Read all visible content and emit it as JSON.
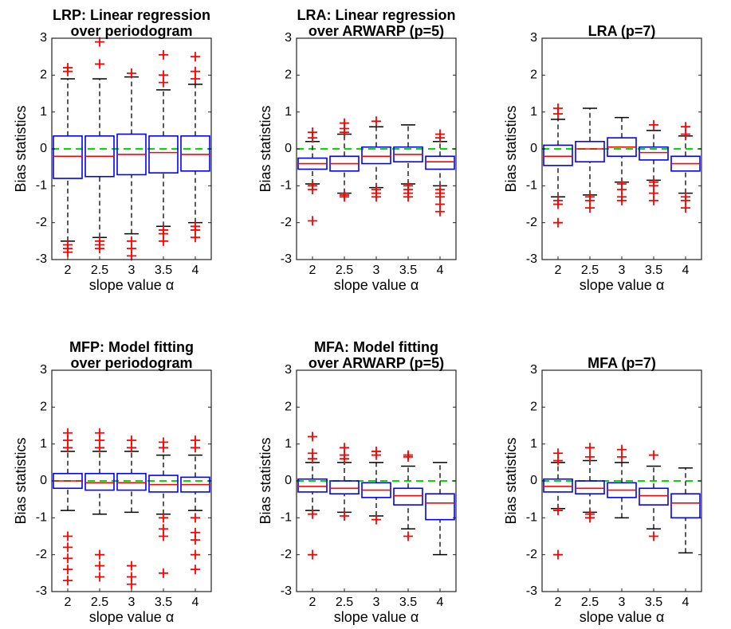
{
  "chart_data": [
    {
      "type": "box",
      "title": [
        "LRP: Linear regression",
        "over periodogram"
      ],
      "xlabel": "slope value α",
      "ylabel": "Bias statistics",
      "categories": [
        "2",
        "2.5",
        "3",
        "3.5",
        "4"
      ],
      "ylim": [
        -3,
        3
      ],
      "yticks": [
        -3,
        -2,
        -1,
        0,
        1,
        2,
        3
      ],
      "refline": 0,
      "refline_color": "#00dd00",
      "box_color": "#0000ff",
      "median_color": "#ff0000",
      "whisker_color": "#000000",
      "flier_color": "#ff0000",
      "boxes": [
        {
          "whislo": -2.5,
          "q1": -0.8,
          "med": -0.2,
          "q3": 0.35,
          "whishi": 1.9,
          "fliers": [
            2.2,
            2.1,
            -2.6,
            -2.7,
            -2.8
          ]
        },
        {
          "whislo": -2.4,
          "q1": -0.75,
          "med": -0.2,
          "q3": 0.35,
          "whishi": 1.9,
          "fliers": [
            2.9,
            2.3,
            -2.5,
            -2.6,
            -2.7
          ]
        },
        {
          "whislo": -2.3,
          "q1": -0.7,
          "med": -0.15,
          "q3": 0.4,
          "whishi": 1.95,
          "fliers": [
            2.05,
            -2.5,
            -2.7,
            -2.9
          ]
        },
        {
          "whislo": -2.1,
          "q1": -0.65,
          "med": -0.1,
          "q3": 0.35,
          "whishi": 1.6,
          "fliers": [
            2.55,
            2.0,
            1.8,
            -2.2,
            -2.3,
            -2.5
          ]
        },
        {
          "whislo": -2.0,
          "q1": -0.6,
          "med": -0.15,
          "q3": 0.35,
          "whishi": 1.75,
          "fliers": [
            2.5,
            2.1,
            1.9,
            -2.1,
            -2.2,
            -2.4
          ]
        }
      ]
    },
    {
      "type": "box",
      "title": [
        "LRA: Linear regression",
        "over ARWARP (p=5)"
      ],
      "xlabel": "slope value α",
      "ylabel": "Bias statistics",
      "categories": [
        "2",
        "2.5",
        "3",
        "3.5",
        "4"
      ],
      "ylim": [
        -3,
        3
      ],
      "yticks": [
        -3,
        -2,
        -1,
        0,
        1,
        2,
        3
      ],
      "refline": 0,
      "refline_color": "#00dd00",
      "box_color": "#0000ff",
      "median_color": "#ff0000",
      "whisker_color": "#000000",
      "flier_color": "#ff0000",
      "boxes": [
        {
          "whislo": -0.95,
          "q1": -0.55,
          "med": -0.4,
          "q3": -0.25,
          "whishi": 0.2,
          "fliers": [
            0.45,
            0.3,
            -1.0,
            -1.1,
            -1.95
          ]
        },
        {
          "whislo": -1.2,
          "q1": -0.6,
          "med": -0.4,
          "q3": -0.2,
          "whishi": 0.4,
          "fliers": [
            0.7,
            0.55,
            0.45,
            -1.25,
            -1.3
          ]
        },
        {
          "whislo": -1.05,
          "q1": -0.4,
          "med": -0.2,
          "q3": 0.05,
          "whishi": 0.6,
          "fliers": [
            0.75,
            -1.1,
            -1.2,
            -1.3
          ]
        },
        {
          "whislo": -0.95,
          "q1": -0.35,
          "med": -0.15,
          "q3": 0.05,
          "whishi": 0.65,
          "fliers": [
            -1.0,
            -1.1,
            -1.2,
            -1.3
          ]
        },
        {
          "whislo": -1.0,
          "q1": -0.55,
          "med": -0.35,
          "q3": -0.2,
          "whishi": 0.2,
          "fliers": [
            0.4,
            0.3,
            -1.1,
            -1.2,
            -1.3,
            -1.5,
            -1.7
          ]
        }
      ]
    },
    {
      "type": "box",
      "title": [
        "LRA (p=7)"
      ],
      "xlabel": "slope value α",
      "ylabel": "Bias statistics",
      "categories": [
        "2",
        "2.5",
        "3",
        "3.5",
        "4"
      ],
      "ylim": [
        -3,
        3
      ],
      "yticks": [
        -3,
        -2,
        -1,
        0,
        1,
        2,
        3
      ],
      "refline": 0,
      "refline_color": "#00dd00",
      "box_color": "#0000ff",
      "median_color": "#ff0000",
      "whisker_color": "#000000",
      "flier_color": "#ff0000",
      "boxes": [
        {
          "whislo": -1.3,
          "q1": -0.45,
          "med": -0.2,
          "q3": 0.1,
          "whishi": 0.8,
          "fliers": [
            1.1,
            0.95,
            -1.4,
            -1.5,
            -2.0
          ]
        },
        {
          "whislo": -1.25,
          "q1": -0.35,
          "med": 0,
          "q3": 0.2,
          "whishi": 1.1,
          "fliers": [
            -1.3,
            -1.4,
            -1.6
          ]
        },
        {
          "whislo": -0.9,
          "q1": -0.2,
          "med": 0.05,
          "q3": 0.3,
          "whishi": 0.85,
          "fliers": [
            -0.95,
            -1.1,
            -1.3,
            -1.4
          ]
        },
        {
          "whislo": -0.85,
          "q1": -0.3,
          "med": -0.1,
          "q3": 0.05,
          "whishi": 0.5,
          "fliers": [
            0.65,
            -0.9,
            -1.0,
            -1.2,
            -1.4
          ]
        },
        {
          "whislo": -1.2,
          "q1": -0.6,
          "med": -0.4,
          "q3": -0.2,
          "whishi": 0.35,
          "fliers": [
            0.6,
            0.4,
            -1.3,
            -1.4,
            -1.6
          ]
        }
      ]
    },
    {
      "type": "box",
      "title": [
        "MFP: Model fitting",
        "over periodogram"
      ],
      "xlabel": "slope value α",
      "ylabel": "Bias statistics",
      "categories": [
        "2",
        "2.5",
        "3",
        "3.5",
        "4"
      ],
      "ylim": [
        -3,
        3
      ],
      "yticks": [
        -3,
        -2,
        -1,
        0,
        1,
        2,
        3
      ],
      "refline": 0,
      "refline_color": "#00dd00",
      "box_color": "#0000ff",
      "median_color": "#ff0000",
      "whisker_color": "#000000",
      "flier_color": "#ff0000",
      "boxes": [
        {
          "whislo": -0.8,
          "q1": -0.2,
          "med": 0,
          "q3": 0.2,
          "whishi": 0.8,
          "fliers": [
            1.3,
            1.1,
            0.9,
            -1.5,
            -1.8,
            -2.1,
            -2.4,
            -2.7
          ]
        },
        {
          "whislo": -0.9,
          "q1": -0.25,
          "med": -0.05,
          "q3": 0.2,
          "whishi": 0.8,
          "fliers": [
            1.3,
            1.1,
            0.9,
            -2.0,
            -2.3,
            -2.6
          ]
        },
        {
          "whislo": -0.85,
          "q1": -0.25,
          "med": -0.05,
          "q3": 0.2,
          "whishi": 0.8,
          "fliers": [
            1.1,
            0.9,
            -2.3,
            -2.6,
            -2.8
          ]
        },
        {
          "whislo": -0.9,
          "q1": -0.3,
          "med": -0.1,
          "q3": 0.15,
          "whishi": 0.7,
          "fliers": [
            1.05,
            0.9,
            -1.0,
            -1.3,
            -1.5,
            -2.5
          ]
        },
        {
          "whislo": -0.8,
          "q1": -0.3,
          "med": -0.1,
          "q3": 0.1,
          "whishi": 0.7,
          "fliers": [
            1.1,
            0.9,
            -1.0,
            -1.4,
            -1.6,
            -2.0,
            -2.4
          ]
        }
      ]
    },
    {
      "type": "box",
      "title": [
        "MFA: Model fitting",
        "over ARWARP (p=5)"
      ],
      "xlabel": "slope value α",
      "ylabel": "Bias statistics",
      "categories": [
        "2",
        "2.5",
        "3",
        "3.5",
        "4"
      ],
      "ylim": [
        -3,
        3
      ],
      "yticks": [
        -3,
        -2,
        -1,
        0,
        1,
        2,
        3
      ],
      "refline": 0,
      "refline_color": "#00dd00",
      "box_color": "#0000ff",
      "median_color": "#ff0000",
      "whisker_color": "#000000",
      "flier_color": "#ff0000",
      "boxes": [
        {
          "whislo": -0.8,
          "q1": -0.3,
          "med": -0.15,
          "q3": 0.05,
          "whishi": 0.5,
          "fliers": [
            1.2,
            0.75,
            0.6,
            -0.9,
            -2.0
          ]
        },
        {
          "whislo": -0.85,
          "q1": -0.35,
          "med": -0.2,
          "q3": 0,
          "whishi": 0.5,
          "fliers": [
            0.9,
            0.7,
            0.6,
            -0.95
          ]
        },
        {
          "whislo": -0.95,
          "q1": -0.45,
          "med": -0.25,
          "q3": -0.05,
          "whishi": 0.5,
          "fliers": [
            0.8,
            0.7,
            -1.05
          ]
        },
        {
          "whislo": -1.3,
          "q1": -0.65,
          "med": -0.4,
          "q3": -0.2,
          "whishi": 0.4,
          "fliers": [
            0.7,
            0.65,
            -1.5
          ]
        },
        {
          "whislo": -2.0,
          "q1": -1.05,
          "med": -0.6,
          "q3": -0.35,
          "whishi": 0.5,
          "fliers": []
        }
      ]
    },
    {
      "type": "box",
      "title": [
        "MFA (p=7)"
      ],
      "xlabel": "slope value α",
      "ylabel": "Bias statistics",
      "categories": [
        "2",
        "2.5",
        "3",
        "3.5",
        "4"
      ],
      "ylim": [
        -3,
        3
      ],
      "yticks": [
        -3,
        -2,
        -1,
        0,
        1,
        2,
        3
      ],
      "refline": 0,
      "refline_color": "#00dd00",
      "box_color": "#0000ff",
      "median_color": "#ff0000",
      "whisker_color": "#000000",
      "flier_color": "#ff0000",
      "boxes": [
        {
          "whislo": -0.75,
          "q1": -0.3,
          "med": -0.15,
          "q3": 0.05,
          "whishi": 0.5,
          "fliers": [
            0.75,
            0.55,
            -0.8,
            -2.0
          ]
        },
        {
          "whislo": -0.85,
          "q1": -0.35,
          "med": -0.2,
          "q3": 0,
          "whishi": 0.55,
          "fliers": [
            0.9,
            0.65,
            -0.9,
            -1.0
          ]
        },
        {
          "whislo": -1.0,
          "q1": -0.45,
          "med": -0.25,
          "q3": -0.05,
          "whishi": 0.5,
          "fliers": [
            0.85,
            0.65
          ]
        },
        {
          "whislo": -1.3,
          "q1": -0.65,
          "med": -0.4,
          "q3": -0.2,
          "whishi": 0.4,
          "fliers": [
            0.7,
            -1.5
          ]
        },
        {
          "whislo": -1.95,
          "q1": -1.0,
          "med": -0.6,
          "q3": -0.35,
          "whishi": 0.35,
          "fliers": []
        }
      ]
    }
  ]
}
